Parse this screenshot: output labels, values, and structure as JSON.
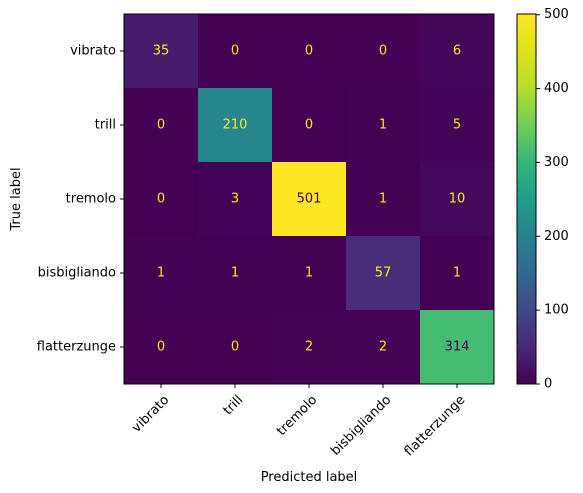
{
  "chart_data": {
    "type": "heatmap",
    "title": "",
    "xlabel": "Predicted label",
    "ylabel": "True label",
    "rows": [
      "vibrato",
      "trill",
      "tremolo",
      "bisbigliando",
      "flatterzunge"
    ],
    "columns": [
      "vibrato",
      "trill",
      "tremolo",
      "bisbigliando",
      "flatterzunge"
    ],
    "values": [
      [
        35,
        0,
        0,
        0,
        6
      ],
      [
        0,
        210,
        0,
        1,
        5
      ],
      [
        0,
        3,
        501,
        1,
        10
      ],
      [
        1,
        1,
        1,
        57,
        1
      ],
      [
        0,
        0,
        2,
        2,
        314
      ]
    ],
    "colormap": "viridis",
    "value_range": [
      0,
      501
    ],
    "colorbar_ticks": [
      "0",
      "100",
      "200",
      "300",
      "400",
      "500"
    ],
    "text_color_dark_cells": "#fde725",
    "text_color_light_cells": "#440154"
  }
}
